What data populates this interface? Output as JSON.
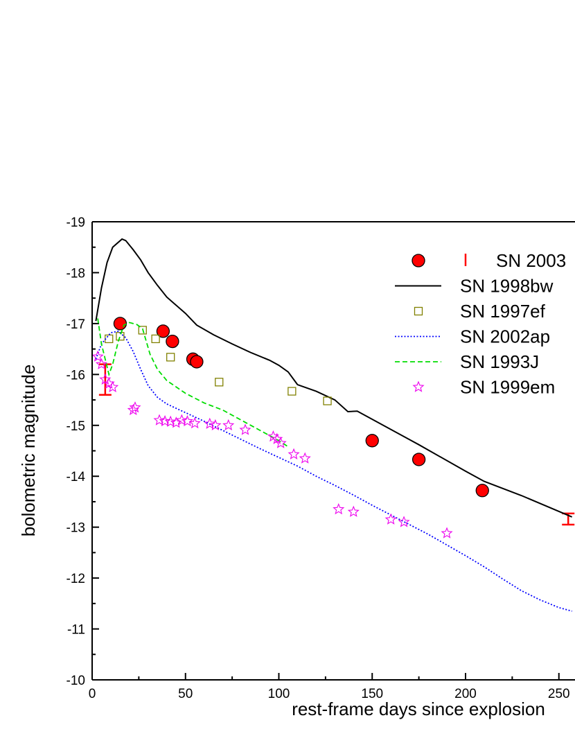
{
  "chart_data": {
    "type": "scatter",
    "xlabel": "rest-frame days since explosion",
    "ylabel": "bolometric magnitude",
    "xlim": [
      0,
      257
    ],
    "ylim": [
      -19,
      -10
    ],
    "y_axis_inverted": true,
    "x_ticks": [
      0,
      50,
      100,
      150,
      200,
      250
    ],
    "y_ticks": [
      -19,
      -18,
      -17,
      -16,
      -15,
      -14,
      -13,
      -12,
      -11,
      -10
    ],
    "x_tick_labels": [
      "0",
      "50",
      "100",
      "150",
      "200",
      "250"
    ],
    "y_tick_labels": [
      "-19",
      "-18",
      "-17",
      "-16",
      "-15",
      "-14",
      "-13",
      "-12",
      "-11",
      "-10"
    ],
    "grid": false,
    "legend_position": "top-right",
    "series": [
      {
        "name": "SN 2003",
        "style": "circle",
        "color": "#ff0000",
        "edge_color": "#000000",
        "points": [
          [
            15,
            -17.0
          ],
          [
            38,
            -16.85
          ],
          [
            43,
            -16.65
          ],
          [
            54,
            -16.3
          ],
          [
            56,
            -16.25
          ],
          [
            150,
            -14.7
          ],
          [
            175,
            -14.33
          ],
          [
            209,
            -13.72
          ]
        ]
      },
      {
        "name": "SN 2003",
        "style": "errorbar",
        "color": "#ff0000",
        "bars": [
          [
            7,
            -15.6,
            -16.2
          ],
          [
            255,
            -13.05,
            -13.27
          ]
        ]
      },
      {
        "name": "SN 1998bw",
        "style": "solid",
        "color": "#000000",
        "points": [
          [
            2,
            -17.05
          ],
          [
            5,
            -17.7
          ],
          [
            8,
            -18.2
          ],
          [
            11,
            -18.5
          ],
          [
            16,
            -18.66
          ],
          [
            18,
            -18.63
          ],
          [
            22,
            -18.45
          ],
          [
            26,
            -18.25
          ],
          [
            30,
            -18.0
          ],
          [
            35,
            -17.75
          ],
          [
            40,
            -17.52
          ],
          [
            45,
            -17.36
          ],
          [
            50,
            -17.2
          ],
          [
            56,
            -16.97
          ],
          [
            65,
            -16.78
          ],
          [
            75,
            -16.6
          ],
          [
            85,
            -16.43
          ],
          [
            95,
            -16.28
          ],
          [
            100,
            -16.18
          ],
          [
            105,
            -16.05
          ],
          [
            110,
            -15.8
          ],
          [
            120,
            -15.67
          ],
          [
            130,
            -15.5
          ],
          [
            137,
            -15.27
          ],
          [
            142,
            -15.28
          ],
          [
            150,
            -15.12
          ],
          [
            175,
            -14.62
          ],
          [
            200,
            -14.1
          ],
          [
            210,
            -13.9
          ],
          [
            230,
            -13.62
          ],
          [
            257,
            -13.2
          ]
        ]
      },
      {
        "name": "SN 1997ef",
        "style": "open-square",
        "color": "#808000",
        "points": [
          [
            9,
            -16.7
          ],
          [
            15,
            -16.75
          ],
          [
            27,
            -16.87
          ],
          [
            34,
            -16.7
          ],
          [
            42,
            -16.34
          ],
          [
            68,
            -15.85
          ],
          [
            107,
            -15.67
          ],
          [
            126,
            -15.48
          ]
        ]
      },
      {
        "name": "SN 2002ap",
        "style": "dotted",
        "color": "#0000ff",
        "points": [
          [
            2,
            -16.3
          ],
          [
            5,
            -16.6
          ],
          [
            10,
            -16.82
          ],
          [
            14,
            -16.85
          ],
          [
            18,
            -16.72
          ],
          [
            22,
            -16.45
          ],
          [
            26,
            -16.1
          ],
          [
            30,
            -15.78
          ],
          [
            35,
            -15.55
          ],
          [
            40,
            -15.42
          ],
          [
            50,
            -15.25
          ],
          [
            60,
            -15.08
          ],
          [
            70,
            -14.9
          ],
          [
            80,
            -14.72
          ],
          [
            90,
            -14.54
          ],
          [
            100,
            -14.37
          ],
          [
            110,
            -14.2
          ],
          [
            120,
            -14.0
          ],
          [
            130,
            -13.82
          ],
          [
            140,
            -13.63
          ],
          [
            150,
            -13.43
          ],
          [
            160,
            -13.24
          ],
          [
            170,
            -13.05
          ],
          [
            180,
            -12.86
          ],
          [
            190,
            -12.65
          ],
          [
            200,
            -12.44
          ],
          [
            210,
            -12.22
          ],
          [
            220,
            -11.98
          ],
          [
            230,
            -11.75
          ],
          [
            240,
            -11.57
          ],
          [
            250,
            -11.42
          ],
          [
            257,
            -11.35
          ]
        ]
      },
      {
        "name": "SN 1993J",
        "style": "dashed",
        "color": "#00dd00",
        "points": [
          [
            3,
            -17.1
          ],
          [
            5,
            -16.6
          ],
          [
            9,
            -16.0
          ],
          [
            11,
            -16.2
          ],
          [
            14,
            -16.65
          ],
          [
            17,
            -16.97
          ],
          [
            20,
            -17.02
          ],
          [
            24,
            -16.98
          ],
          [
            27,
            -16.9
          ],
          [
            31,
            -16.4
          ],
          [
            35,
            -16.1
          ],
          [
            40,
            -15.88
          ],
          [
            50,
            -15.63
          ],
          [
            60,
            -15.44
          ],
          [
            70,
            -15.3
          ],
          [
            80,
            -15.1
          ],
          [
            90,
            -14.9
          ],
          [
            100,
            -14.7
          ],
          [
            105,
            -14.58
          ]
        ]
      },
      {
        "name": "SN 1999em",
        "style": "open-star",
        "color": "#ee00ee",
        "points": [
          [
            3,
            -16.35
          ],
          [
            5,
            -16.2
          ],
          [
            7,
            -15.9
          ],
          [
            9,
            -15.82
          ],
          [
            11,
            -15.75
          ],
          [
            22,
            -15.3
          ],
          [
            23,
            -15.35
          ],
          [
            36,
            -15.1
          ],
          [
            39,
            -15.08
          ],
          [
            42,
            -15.07
          ],
          [
            45,
            -15.05
          ],
          [
            48,
            -15.1
          ],
          [
            51,
            -15.08
          ],
          [
            55,
            -15.04
          ],
          [
            63,
            -15.03
          ],
          [
            66,
            -15.0
          ],
          [
            73,
            -15.0
          ],
          [
            82,
            -14.91
          ],
          [
            97,
            -14.78
          ],
          [
            99,
            -14.73
          ],
          [
            101,
            -14.65
          ],
          [
            108,
            -14.43
          ],
          [
            114,
            -14.35
          ],
          [
            132,
            -13.35
          ],
          [
            140,
            -13.3
          ],
          [
            160,
            -13.15
          ],
          [
            167,
            -13.1
          ],
          [
            190,
            -12.88
          ]
        ]
      }
    ]
  }
}
